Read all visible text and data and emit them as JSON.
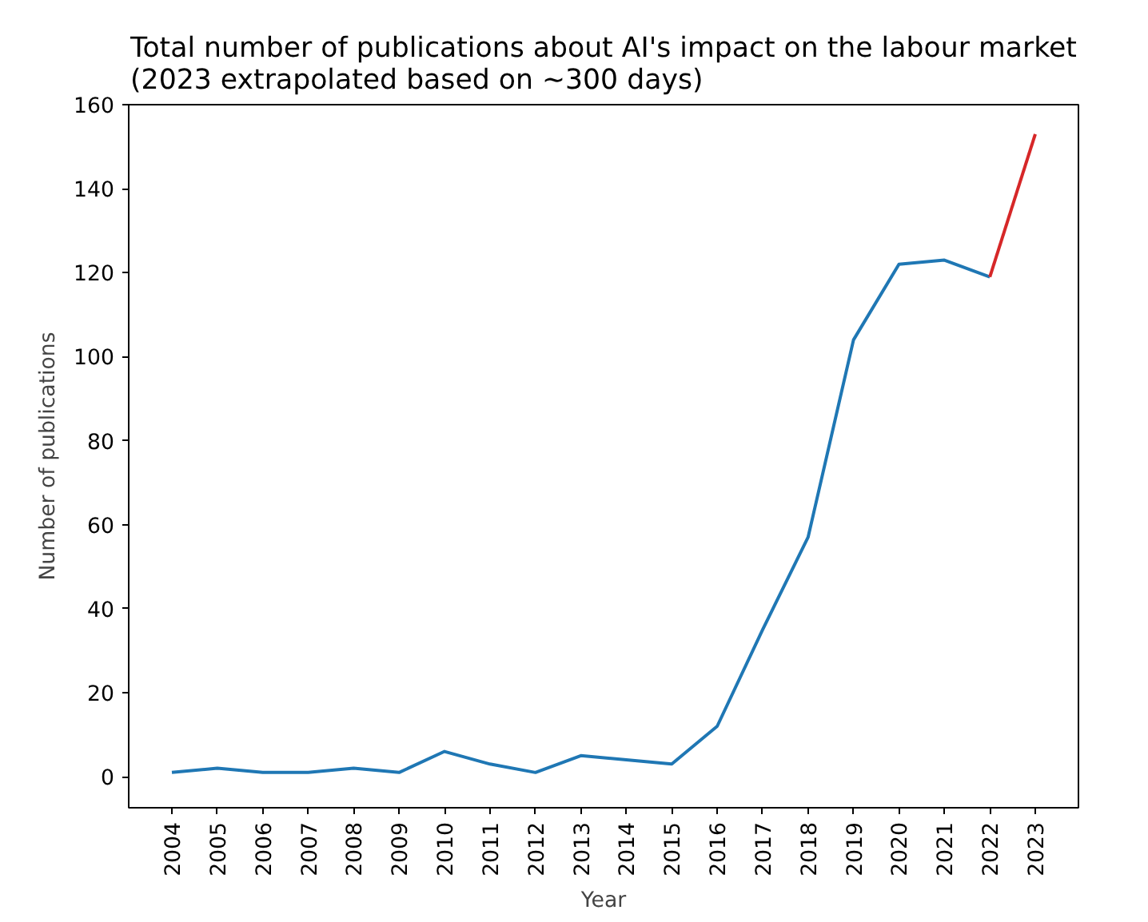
{
  "chart_data": {
    "type": "line",
    "title": "Total number of publications about AI's impact on the labour market\n(2023 extrapolated based on ~300 days)",
    "xlabel": "Year",
    "ylabel": "Number of publications",
    "categories": [
      "2004",
      "2005",
      "2006",
      "2007",
      "2008",
      "2009",
      "2010",
      "2011",
      "2012",
      "2013",
      "2014",
      "2015",
      "2016",
      "2017",
      "2018",
      "2019",
      "2020",
      "2021",
      "2022",
      "2023"
    ],
    "series": [
      {
        "color": "#1f77b4",
        "values": [
          1,
          2,
          1,
          1,
          2,
          1,
          6,
          3,
          1,
          5,
          4,
          3,
          12,
          35,
          57,
          104,
          122,
          123,
          119,
          null
        ]
      },
      {
        "color": "#d62728",
        "values": [
          null,
          null,
          null,
          null,
          null,
          null,
          null,
          null,
          null,
          null,
          null,
          null,
          null,
          null,
          null,
          null,
          null,
          null,
          119,
          153
        ]
      }
    ],
    "ylim": [
      -7.4,
      160
    ],
    "yticks": [
      0,
      20,
      40,
      60,
      80,
      100,
      120,
      140,
      160
    ],
    "grid": false,
    "line_style": "solid"
  }
}
